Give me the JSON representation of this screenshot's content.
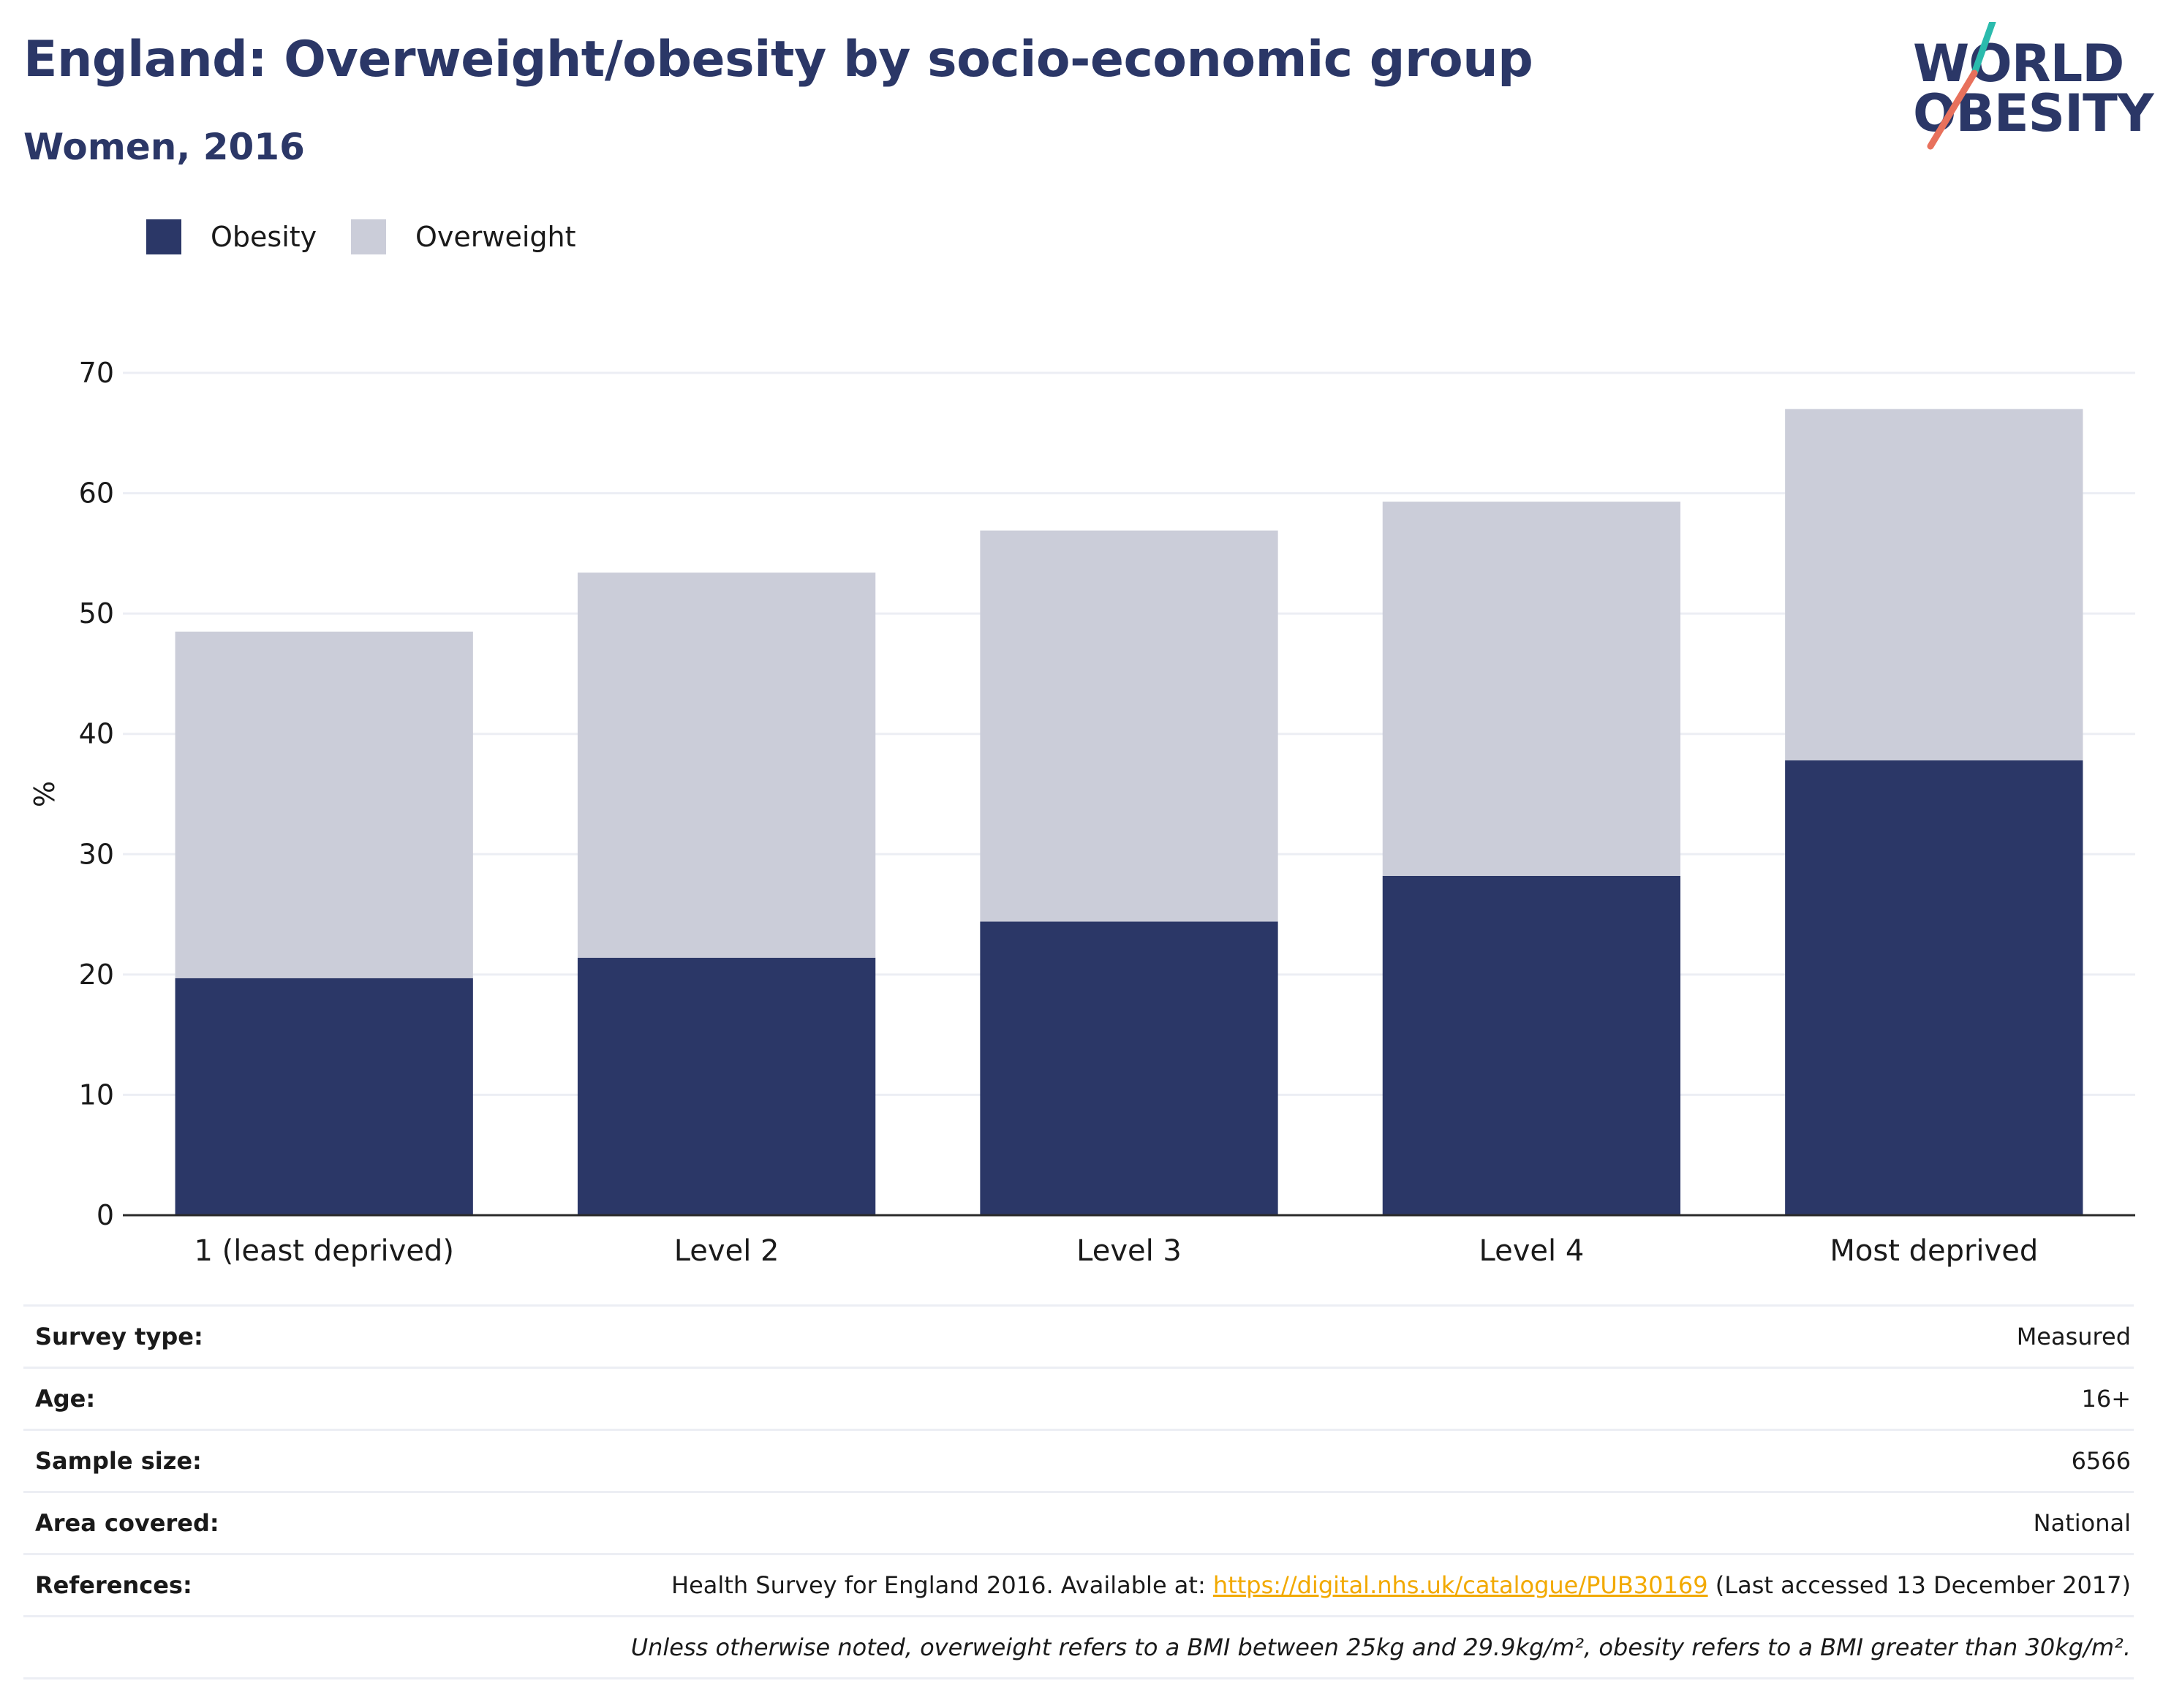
{
  "header": {
    "title": "England: Overweight/obesity by socio-economic group",
    "subtitle": "Women, 2016"
  },
  "logo": {
    "line1": "WORLD",
    "line2": "OBESITY",
    "colors": {
      "text": "#2b3767",
      "accent_teal": "#2bbbad",
      "accent_coral": "#e8715c"
    }
  },
  "legend": [
    {
      "label": "Obesity",
      "color": "#2b3767"
    },
    {
      "label": "Overweight",
      "color": "#cbcdd9"
    }
  ],
  "chart_data": {
    "type": "bar",
    "stacked": true,
    "categories": [
      "1 (least deprived)",
      "Level 2",
      "Level 3",
      "Level 4",
      "Most deprived"
    ],
    "series": [
      {
        "name": "Obesity",
        "color": "#2b3767",
        "values": [
          19.7,
          21.4,
          24.4,
          28.2,
          37.8
        ]
      },
      {
        "name": "Overweight",
        "color": "#cbcdd9",
        "values": [
          28.8,
          32.0,
          32.5,
          31.1,
          29.2
        ]
      }
    ],
    "title": "England: Overweight/obesity by socio-economic group",
    "subtitle": "Women, 2016",
    "xlabel": "",
    "ylabel": "%",
    "ylim": [
      0,
      70
    ],
    "yticks": [
      0,
      10,
      20,
      30,
      40,
      50,
      60,
      70
    ],
    "grid": true,
    "legend_position": "top-left"
  },
  "info": {
    "survey_type_label": "Survey type:",
    "survey_type_value": "Measured",
    "age_label": "Age:",
    "age_value": "16+",
    "sample_size_label": "Sample size:",
    "sample_size_value": "6566",
    "area_label": "Area covered:",
    "area_value": "National",
    "references_label": "References:",
    "references_prefix": "Health Survey for England 2016. Available at: ",
    "references_link": "https://digital.nhs.uk/catalogue/PUB30169",
    "references_suffix": " (Last accessed 13 December 2017)",
    "note": "Unless otherwise noted, overweight refers to a BMI between 25kg and 29.9kg/m², obesity refers to a BMI greater than 30kg/m²."
  }
}
